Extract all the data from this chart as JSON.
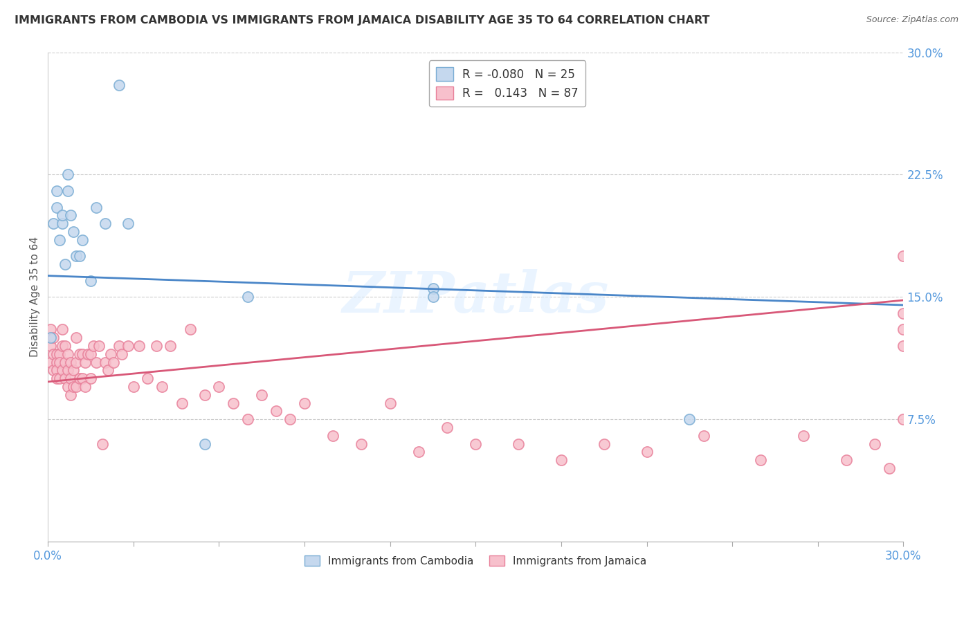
{
  "title": "IMMIGRANTS FROM CAMBODIA VS IMMIGRANTS FROM JAMAICA DISABILITY AGE 35 TO 64 CORRELATION CHART",
  "source": "Source: ZipAtlas.com",
  "ylabel": "Disability Age 35 to 64",
  "right_ytick_labels": [
    "7.5%",
    "15.0%",
    "22.5%",
    "30.0%"
  ],
  "right_yticks_val": [
    0.075,
    0.15,
    0.225,
    0.3
  ],
  "xmin": 0.0,
  "xmax": 0.3,
  "ymin": 0.0,
  "ymax": 0.3,
  "legend_R_cambodia": "-0.080",
  "legend_N_cambodia": "25",
  "legend_R_jamaica": "0.143",
  "legend_N_jamaica": "87",
  "color_cambodia_fill": "#c5d8ee",
  "color_cambodia_edge": "#7aadd4",
  "color_jamaica_fill": "#f7c0cc",
  "color_jamaica_edge": "#e8809a",
  "color_line_cambodia": "#4a86c8",
  "color_line_jamaica": "#d85878",
  "color_axis_labels": "#5599dd",
  "color_title": "#333333",
  "watermark": "ZIPatlas",
  "trendline_cambodia_y0": 0.163,
  "trendline_cambodia_y1": 0.145,
  "trendline_jamaica_y0": 0.098,
  "trendline_jamaica_y1": 0.148,
  "cambodia_x": [
    0.001,
    0.002,
    0.003,
    0.003,
    0.004,
    0.005,
    0.005,
    0.006,
    0.007,
    0.007,
    0.008,
    0.009,
    0.01,
    0.011,
    0.012,
    0.015,
    0.017,
    0.02,
    0.025,
    0.028,
    0.055,
    0.07,
    0.135,
    0.135,
    0.225
  ],
  "cambodia_y": [
    0.125,
    0.195,
    0.205,
    0.215,
    0.185,
    0.195,
    0.2,
    0.17,
    0.215,
    0.225,
    0.2,
    0.19,
    0.175,
    0.175,
    0.185,
    0.16,
    0.205,
    0.195,
    0.28,
    0.195,
    0.06,
    0.15,
    0.155,
    0.15,
    0.075
  ],
  "jamaica_x": [
    0.001,
    0.001,
    0.001,
    0.002,
    0.002,
    0.002,
    0.003,
    0.003,
    0.003,
    0.003,
    0.004,
    0.004,
    0.004,
    0.005,
    0.005,
    0.005,
    0.006,
    0.006,
    0.006,
    0.007,
    0.007,
    0.007,
    0.008,
    0.008,
    0.008,
    0.009,
    0.009,
    0.01,
    0.01,
    0.01,
    0.011,
    0.011,
    0.012,
    0.012,
    0.013,
    0.013,
    0.014,
    0.015,
    0.015,
    0.016,
    0.017,
    0.018,
    0.019,
    0.02,
    0.021,
    0.022,
    0.023,
    0.025,
    0.026,
    0.028,
    0.03,
    0.032,
    0.035,
    0.038,
    0.04,
    0.043,
    0.047,
    0.05,
    0.055,
    0.06,
    0.065,
    0.07,
    0.075,
    0.08,
    0.085,
    0.09,
    0.1,
    0.11,
    0.12,
    0.13,
    0.14,
    0.15,
    0.165,
    0.18,
    0.195,
    0.21,
    0.23,
    0.25,
    0.265,
    0.28,
    0.29,
    0.295,
    0.3,
    0.3,
    0.3,
    0.3,
    0.3
  ],
  "jamaica_y": [
    0.12,
    0.13,
    0.11,
    0.125,
    0.115,
    0.105,
    0.115,
    0.11,
    0.105,
    0.1,
    0.115,
    0.11,
    0.1,
    0.13,
    0.12,
    0.105,
    0.12,
    0.11,
    0.1,
    0.115,
    0.105,
    0.095,
    0.11,
    0.1,
    0.09,
    0.105,
    0.095,
    0.125,
    0.11,
    0.095,
    0.115,
    0.1,
    0.115,
    0.1,
    0.11,
    0.095,
    0.115,
    0.115,
    0.1,
    0.12,
    0.11,
    0.12,
    0.06,
    0.11,
    0.105,
    0.115,
    0.11,
    0.12,
    0.115,
    0.12,
    0.095,
    0.12,
    0.1,
    0.12,
    0.095,
    0.12,
    0.085,
    0.13,
    0.09,
    0.095,
    0.085,
    0.075,
    0.09,
    0.08,
    0.075,
    0.085,
    0.065,
    0.06,
    0.085,
    0.055,
    0.07,
    0.06,
    0.06,
    0.05,
    0.06,
    0.055,
    0.065,
    0.05,
    0.065,
    0.05,
    0.06,
    0.045,
    0.14,
    0.13,
    0.12,
    0.175,
    0.075
  ]
}
